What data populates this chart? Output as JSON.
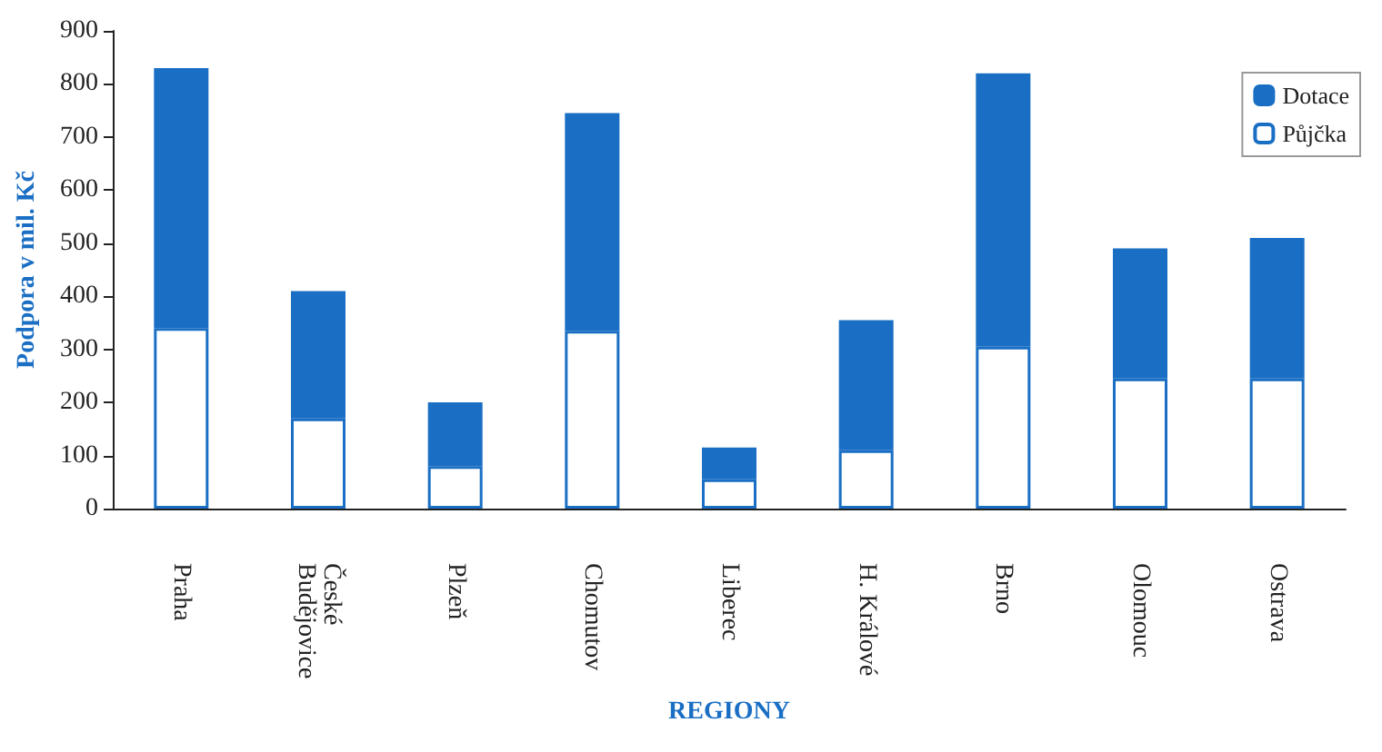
{
  "chart_data": {
    "type": "bar",
    "stacked": true,
    "xlabel": "REGIONY",
    "ylabel": "Podpora v mil. Kč",
    "categories": [
      "Praha",
      "České\nBudějovice",
      "Plzeň",
      "Chomutov",
      "Liberec",
      "H. Králové",
      "Brno",
      "Olomouc",
      "Ostrava"
    ],
    "series": [
      {
        "name": "Půjčka",
        "color": "#ffffff",
        "values": [
          340,
          170,
          80,
          335,
          55,
          110,
          305,
          245,
          245
        ]
      },
      {
        "name": "Dotace",
        "color": "#1a6fc4",
        "values": [
          490,
          240,
          120,
          410,
          60,
          245,
          515,
          245,
          265
        ]
      }
    ],
    "ylim": [
      0,
      900
    ],
    "yticks": [
      0,
      100,
      200,
      300,
      400,
      500,
      600,
      700,
      800,
      900
    ],
    "grid": false,
    "legend": "top right"
  }
}
